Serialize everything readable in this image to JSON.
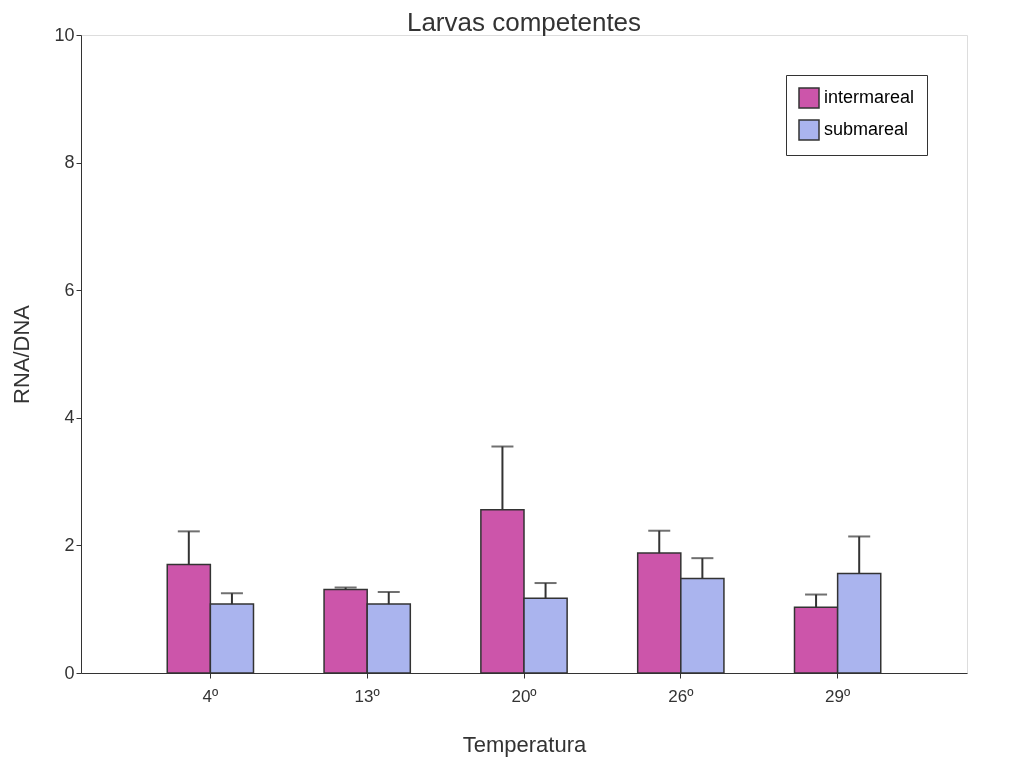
{
  "chart_data": {
    "type": "bar",
    "title": "Larvas competentes",
    "xlabel": "Temperatura",
    "ylabel": "RNA/DNA",
    "categories": [
      "4º",
      "13º",
      "20º",
      "26º",
      "29º"
    ],
    "series": [
      {
        "name": "intermareal",
        "color": "#cc55aa",
        "values": [
          1.7,
          1.31,
          2.56,
          1.88,
          1.03
        ],
        "errors": [
          [
            1.7,
            2.22
          ],
          [
            1.31,
            1.34
          ],
          [
            2.56,
            3.55
          ],
          [
            1.88,
            2.23
          ],
          [
            1.03,
            1.23
          ]
        ]
      },
      {
        "name": "submareal",
        "color": "#aab4ee",
        "values": [
          1.08,
          1.08,
          1.17,
          1.48,
          1.56
        ],
        "errors": [
          [
            1.08,
            1.25
          ],
          [
            1.08,
            1.27
          ],
          [
            1.17,
            1.41
          ],
          [
            1.48,
            1.8
          ],
          [
            1.56,
            2.14
          ]
        ]
      }
    ],
    "ylim": [
      0,
      10
    ],
    "yticks": [
      0,
      2,
      4,
      6,
      8,
      10
    ],
    "grid": false,
    "legend": "top right"
  }
}
